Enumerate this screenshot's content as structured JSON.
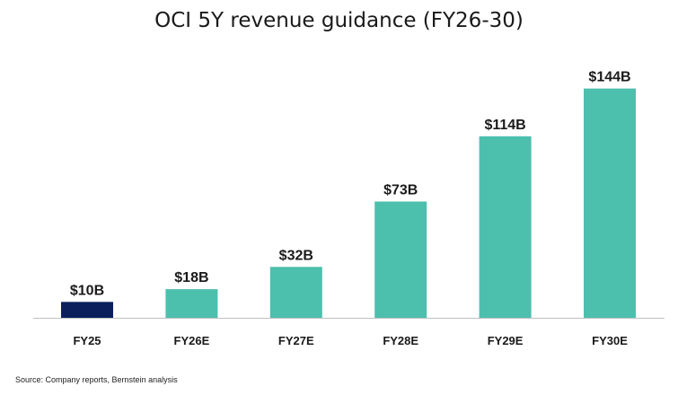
{
  "chart_data": {
    "type": "bar",
    "title": "OCI 5Y revenue guidance (FY26-30)",
    "categories": [
      "FY25",
      "FY26E",
      "FY27E",
      "FY28E",
      "FY29E",
      "FY30E"
    ],
    "values": [
      10,
      18,
      32,
      73,
      114,
      144
    ],
    "data_labels": [
      "$10B",
      "$18B",
      "$32B",
      "$73B",
      "$114B",
      "$144B"
    ],
    "bar_colors": [
      "#0a1f5c",
      "#4dbfad",
      "#4dbfad",
      "#4dbfad",
      "#4dbfad",
      "#4dbfad"
    ],
    "axis_color": "#bfbfbf",
    "xlabel": "",
    "ylabel": "",
    "ylim": [
      0,
      150
    ],
    "grid": false,
    "legend": "none"
  },
  "source_note": "Source: Company reports, Bernstein analysis"
}
